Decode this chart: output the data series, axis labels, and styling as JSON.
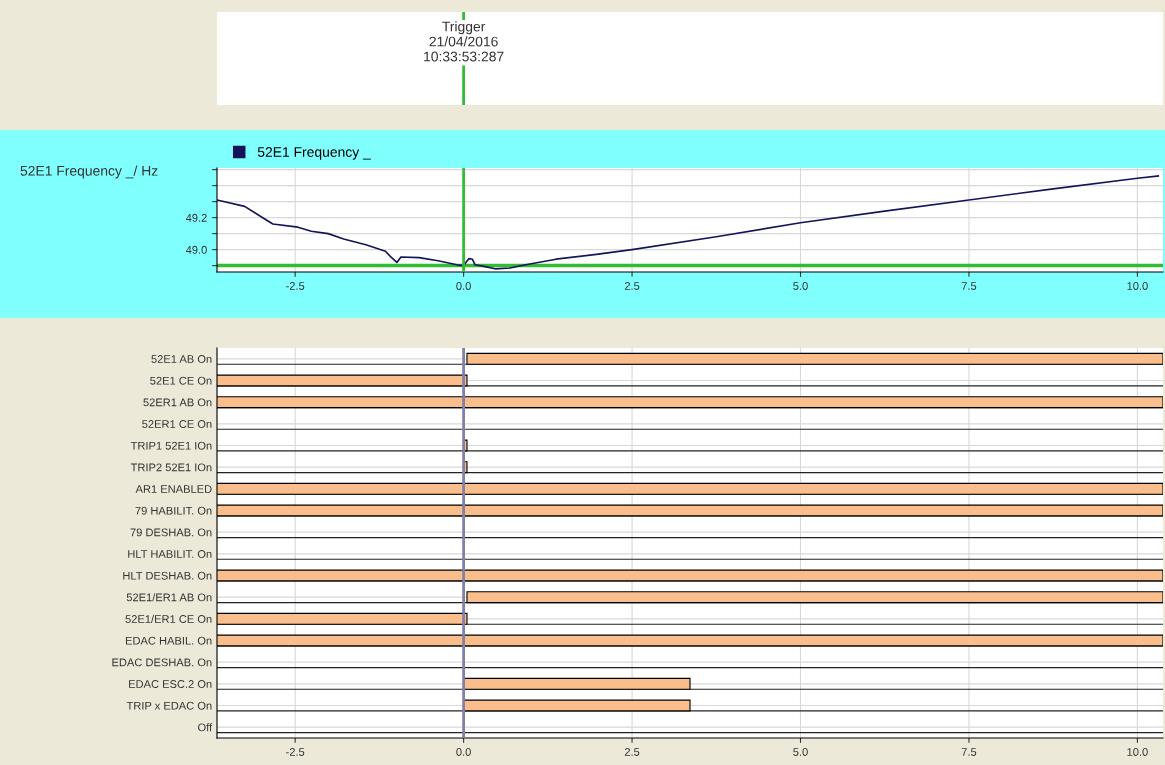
{
  "chart_data": [
    {
      "type": "line",
      "ylabel": "52E1 Frequency _/ Hz",
      "legend": "top left",
      "grid": true,
      "marker": "none",
      "line_style": "solid",
      "xlim": [
        -3.66,
        10.38
      ],
      "ylim": [
        48.86,
        49.51
      ],
      "xticks": [
        -2.5,
        {
          "value": 0,
          "label": "0.0"
        },
        2.5,
        {
          "value": 5,
          "label": "5.0"
        },
        7.5,
        {
          "value": 10,
          "label": "10.0"
        }
      ],
      "yticks": [
        {
          "value": 48.9,
          "label": null
        },
        {
          "value": 49.0,
          "label": "49.0"
        },
        {
          "value": 49.1,
          "label": null
        },
        {
          "value": 49.2,
          "label": "49.2"
        },
        {
          "value": 49.3,
          "label": null
        },
        {
          "value": 49.4,
          "label": null
        },
        {
          "value": 49.5,
          "label": null
        }
      ],
      "annotations": [
        "Trigger\n21/04/2016\n10:33:53:287"
      ],
      "ref_lines": [
        {
          "axis": "x",
          "value": 0,
          "label": null,
          "color": "#33bb33"
        },
        {
          "axis": "y",
          "value": 48.9,
          "label": null,
          "color": "#33bb33"
        }
      ],
      "series": [
        {
          "name": "52E1 Frequency _",
          "color": "#14145a",
          "x": [
            -3.66,
            -3.25,
            -2.91,
            -2.83,
            -2.46,
            -2.26,
            -2.01,
            -1.78,
            -1.45,
            -1.16,
            -1.08,
            -0.99,
            -0.93,
            -0.66,
            -0.38,
            -0.1,
            0,
            0.08,
            0.13,
            0.17,
            0.3,
            0.47,
            0.69,
            0.92,
            1.25,
            1.37,
            1.97,
            2.5,
            3.75,
            5.0,
            6.25,
            7.5,
            8.75,
            10.0,
            10.31
          ],
          "values": [
            49.31,
            49.27,
            49.18,
            49.16,
            49.14,
            49.115,
            49.1,
            49.066,
            49.03,
            48.99,
            48.954,
            48.92,
            48.954,
            48.95,
            48.93,
            48.905,
            48.9,
            48.944,
            48.94,
            48.905,
            48.895,
            48.88,
            48.885,
            48.905,
            48.93,
            48.94,
            48.97,
            49.0,
            49.08,
            49.168,
            49.24,
            49.31,
            49.38,
            49.446,
            49.46
          ]
        }
      ]
    },
    {
      "type": "bar",
      "orientation": "horizontal",
      "grid": true,
      "categories": [
        "52E1 AB On",
        "52E1 CE On",
        "52ER1 AB On",
        "52ER1 CE On",
        "TRIP1 52E1 IOn",
        "TRIP2 52E1 IOn",
        "AR1 ENABLED",
        "79 HABILIT. On",
        "79 DESHAB. On",
        "HLT HABILIT. On",
        "HLT DESHAB. On",
        "52E1/ER1 AB On",
        "52E1/ER1 CE On",
        "EDAC HABIL. On",
        "EDAC DESHAB. On",
        "EDAC ESC.2 On",
        "TRIP x EDAC On",
        "Off"
      ],
      "xlim": [
        -3.66,
        10.38
      ],
      "xticks": [
        -2.5,
        {
          "value": 0,
          "label": "0.0"
        },
        2.5,
        {
          "value": 5,
          "label": "5.0"
        },
        7.5,
        {
          "value": 10,
          "label": "10.0"
        }
      ],
      "ref_lines": [
        {
          "axis": "x",
          "value": 0,
          "label": null,
          "color": "#8080a8"
        }
      ],
      "series": [
        {
          "color": "#f9be8c",
          "base": [
            0.05,
            -3.66,
            -3.66,
            null,
            0.0,
            0.0,
            -3.66,
            -3.66,
            null,
            null,
            -3.66,
            0.05,
            -3.66,
            -3.66,
            null,
            0.0,
            0.0,
            null
          ],
          "values": [
            10.33,
            3.71,
            14.04,
            null,
            0.05,
            0.05,
            14.04,
            14.04,
            null,
            null,
            14.04,
            10.33,
            3.71,
            14.04,
            null,
            3.36,
            3.36,
            null
          ]
        }
      ]
    }
  ]
}
